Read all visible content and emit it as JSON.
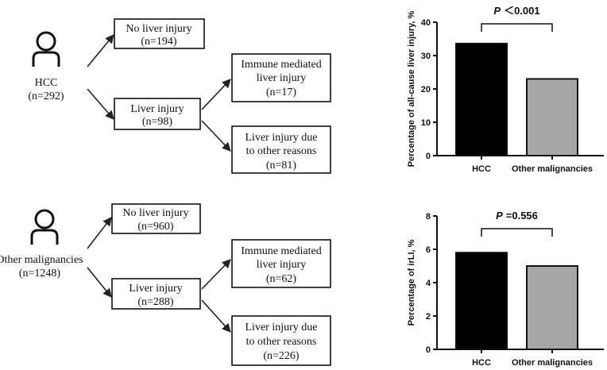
{
  "colors": {
    "hcc_bar": "#000000",
    "other_bar": "#a6a6a6",
    "line": "#111111",
    "arrow": "#222222"
  },
  "flow_top": {
    "group_label": "HCC",
    "group_n": "(n=292)",
    "no_injury": {
      "label": "No liver injury",
      "n": "(n=194)"
    },
    "injury": {
      "label": "Liver injury",
      "n": "(n=98)"
    },
    "immune": {
      "line1": "Immune mediated",
      "line2": "liver injury",
      "n": "(n=17)"
    },
    "other_reasons": {
      "line1": "Liver injury due",
      "line2": "to other reasons",
      "n": "(n=81)"
    }
  },
  "flow_bottom": {
    "group_label": "Other malignancies",
    "group_n": "(n=1248)",
    "no_injury": {
      "label": "No liver injury",
      "n": "(n=960)"
    },
    "injury": {
      "label": "Liver injury",
      "n": "(n=288)"
    },
    "immune": {
      "line1": "Immune mediated",
      "line2": "liver injury",
      "n": "(n=62)"
    },
    "other_reasons": {
      "line1": "Liver injury due",
      "line2": "to other reasons",
      "n": "(n=226)"
    }
  },
  "chart_data": [
    {
      "type": "bar",
      "categories": [
        "HCC",
        "Other malignancies"
      ],
      "values": [
        33.6,
        23.0
      ],
      "title": "",
      "xlabel": "",
      "ylabel": "Percentage of all-cause liver injury, %",
      "ylim": [
        0,
        40
      ],
      "yticks": [
        "0",
        "10",
        "20",
        "30",
        "40"
      ],
      "annotation": {
        "p_label": "P",
        "p_value": "＜0.001"
      }
    },
    {
      "type": "bar",
      "categories": [
        "HCC",
        "Other malignancies"
      ],
      "values": [
        5.8,
        5.0
      ],
      "title": "",
      "xlabel": "",
      "ylabel": "Percentage of irLI, %",
      "ylim": [
        0,
        8
      ],
      "yticks": [
        "0",
        "2",
        "4",
        "6",
        "8"
      ],
      "annotation": {
        "p_label": "P",
        "p_value": "=0.556"
      }
    }
  ]
}
